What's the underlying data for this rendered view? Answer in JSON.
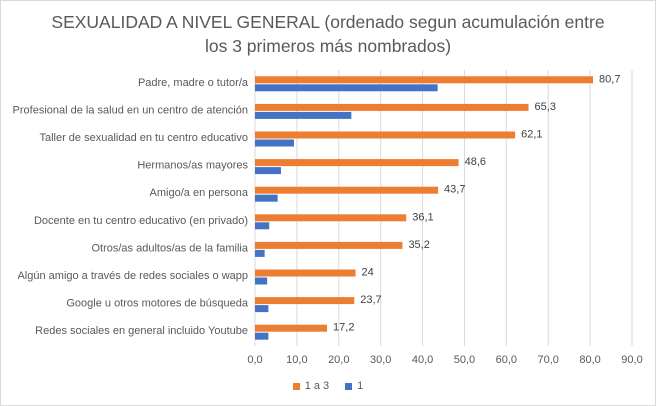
{
  "chart_data": {
    "type": "bar",
    "orientation": "horizontal",
    "title_line1": "SEXUALIDAD A NIVEL GENERAL (ordenado segun acumulación entre",
    "title_line2": "los 3 primeros más nombrados)",
    "categories": [
      "Padre, madre o tutor/a",
      "Profesional de la salud en un centro de atención",
      "Taller de sexualidad en tu centro educativo",
      "Hermanos/as mayores",
      "Amigo/a en persona",
      "Docente en tu centro educativo (en privado)",
      "Otros/as adultos/as de la familia",
      "Algún amigo a través de redes sociales o wapp",
      "Google u otros motores de búsqueda",
      "Redes sociales en general incluido Youtube"
    ],
    "series": [
      {
        "name": "1 a 3",
        "color": "#ED7D31",
        "values": [
          80.7,
          65.3,
          62.1,
          48.6,
          43.7,
          36.1,
          35.2,
          24,
          23.7,
          17.2
        ],
        "labels": [
          "80,7",
          "65,3",
          "62,1",
          "48,6",
          "43,7",
          "36,1",
          "35,2",
          "24",
          "23,7",
          "17,2"
        ]
      },
      {
        "name": "1",
        "color": "#4472C4",
        "values": [
          43.6,
          23.0,
          9.3,
          6.2,
          5.4,
          3.4,
          2.3,
          2.9,
          3.2,
          3.2
        ]
      }
    ],
    "xlim": [
      0,
      90
    ],
    "xticks": [
      "0,0",
      "10,0",
      "20,0",
      "30,0",
      "40,0",
      "50,0",
      "60,0",
      "70,0",
      "80,0",
      "90,0"
    ],
    "grid": true,
    "legend_position": "bottom"
  }
}
